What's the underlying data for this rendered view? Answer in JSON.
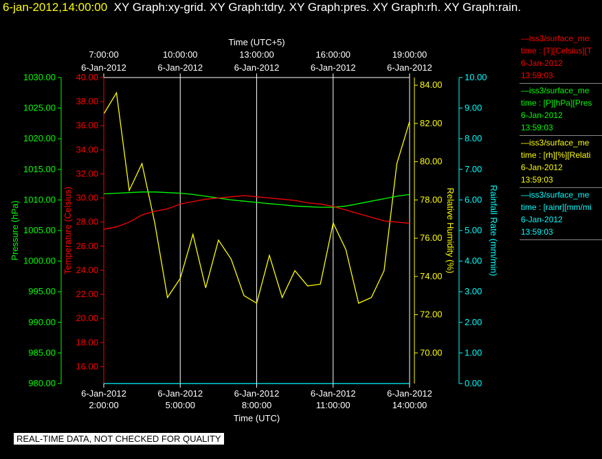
{
  "header": {
    "date_time": "6-jan-2012,14:00:00",
    "graphs": "XY Graph:xy-grid.  XY Graph:tdry.  XY Graph:pres.  XY Graph:rh.  XY Graph:rain."
  },
  "colors": {
    "temperature": "#ff0000",
    "pressure": "#00ff00",
    "humidity": "#ffff00",
    "rain": "#00ffff",
    "grid": "#ffffff"
  },
  "chart_data": {
    "type": "line",
    "top_axis": {
      "label": "Time (UTC+5)",
      "ticks": [
        {
          "time": "7:00:00",
          "date": "6-Jan-2012"
        },
        {
          "time": "10:00:00",
          "date": "6-Jan-2012"
        },
        {
          "time": "13:00:00",
          "date": "6-Jan-2012"
        },
        {
          "time": "16:00:00",
          "date": "6-Jan-2012"
        },
        {
          "time": "19:00:00",
          "date": "6-Jan-2012"
        }
      ]
    },
    "bottom_axis": {
      "label": "Time (UTC)",
      "range": [
        "2:00:00",
        "14:00:00"
      ],
      "ticks": [
        {
          "date": "6-Jan-2012",
          "time": "2:00:00"
        },
        {
          "date": "6-Jan-2012",
          "time": "5:00:00"
        },
        {
          "date": "6-Jan-2012",
          "time": "8:00:00"
        },
        {
          "date": "6-Jan-2012",
          "time": "11:00:00"
        },
        {
          "date": "6-Jan-2012",
          "time": "14:00:00"
        }
      ]
    },
    "grid": true,
    "x_hours": [
      2,
      2.5,
      3,
      3.5,
      4,
      4.5,
      5,
      5.5,
      6,
      6.5,
      7,
      7.5,
      8,
      8.5,
      9,
      9.5,
      10,
      10.5,
      11,
      11.5,
      12,
      12.5,
      13,
      13.5,
      14
    ],
    "axes": {
      "pressure": {
        "label": "Pressure (hPa)",
        "min": 980,
        "max": 1030,
        "ticks": [
          "980.00",
          "985.00",
          "990.00",
          "995.00",
          "1000.00",
          "1005.00",
          "1010.00",
          "1015.00",
          "1020.00",
          "1025.00",
          "1030.00"
        ]
      },
      "temperature": {
        "label": "Temperature (Celsius)",
        "min": 14.6,
        "max": 40,
        "ticks": [
          "16.00",
          "18.00",
          "20.00",
          "22.00",
          "24.00",
          "26.00",
          "28.00",
          "30.00",
          "32.00",
          "34.00",
          "36.00",
          "38.00",
          "40.00"
        ]
      },
      "humidity": {
        "label": "Relative Humidity (%)",
        "min": 68.4,
        "max": 84.4,
        "ticks": [
          "70.00",
          "72.00",
          "74.00",
          "76.00",
          "78.00",
          "80.00",
          "82.00",
          "84.00"
        ]
      },
      "rain": {
        "label": "Rainfall Rate (mm/min)",
        "min": 0,
        "max": 10,
        "ticks": [
          "0.00",
          "1.00",
          "2.00",
          "3.00",
          "4.00",
          "5.00",
          "6.00",
          "7.00",
          "8.00",
          "9.00",
          "10.00"
        ]
      }
    },
    "series": [
      {
        "name": "iss3/surface_me",
        "axis": "pressure",
        "values": [
          1011.0,
          1011.1,
          1011.2,
          1011.3,
          1011.3,
          1011.2,
          1011.1,
          1010.9,
          1010.6,
          1010.3,
          1010.0,
          1009.8,
          1009.6,
          1009.4,
          1009.2,
          1009.0,
          1008.9,
          1008.8,
          1008.8,
          1009.0,
          1009.4,
          1009.8,
          1010.2,
          1010.6,
          1010.9
        ]
      },
      {
        "name": "iss3/surface_me",
        "axis": "temperature",
        "values": [
          27.4,
          27.6,
          28.0,
          28.6,
          28.9,
          29.1,
          29.5,
          29.7,
          29.9,
          30.0,
          30.1,
          30.2,
          30.1,
          30.0,
          29.9,
          29.8,
          29.6,
          29.5,
          29.3,
          29.0,
          28.7,
          28.4,
          28.1,
          28.0,
          27.9
        ]
      },
      {
        "name": "iss3/surface_me",
        "axis": "humidity",
        "values": [
          82.5,
          83.6,
          78.5,
          79.9,
          76.8,
          72.9,
          73.9,
          76.2,
          73.4,
          75.9,
          74.9,
          73.0,
          72.6,
          75.1,
          72.9,
          74.3,
          73.5,
          73.6,
          76.8,
          75.4,
          72.6,
          72.9,
          74.3,
          79.9,
          82.1
        ]
      },
      {
        "name": "iss3/surface_me",
        "axis": "rain",
        "values": [
          0.0,
          0.0,
          0.0,
          0.0,
          0.0,
          0.0,
          0.0,
          0.0,
          0.0,
          0.0,
          0.0,
          0.0,
          0.0,
          0.0,
          0.0,
          0.0,
          0.0,
          0.0,
          0.0,
          0.0,
          0.0,
          0.0,
          0.0,
          0.0,
          0.0
        ]
      }
    ]
  },
  "legend": [
    {
      "name": "iss3/surface_me",
      "line2": "time : [T][Celsius][T",
      "date": "6-Jan-2012",
      "time": "13:59:03"
    },
    {
      "name": "iss3/surface_me",
      "line2": "time : [P][hPa][Pres",
      "date": "6-Jan-2012",
      "time": "13:59:03"
    },
    {
      "name": "iss3/surface_me",
      "line2": "time : [rh][%][Relati",
      "date": "6-Jan-2012",
      "time": "13:59:03"
    },
    {
      "name": "iss3/surface_me",
      "line2": "time : [rainr][mm/mi",
      "date": "6-Jan-2012",
      "time": "13:59:03"
    }
  ],
  "footer": "REAL-TIME DATA, NOT CHECKED FOR QUALITY"
}
